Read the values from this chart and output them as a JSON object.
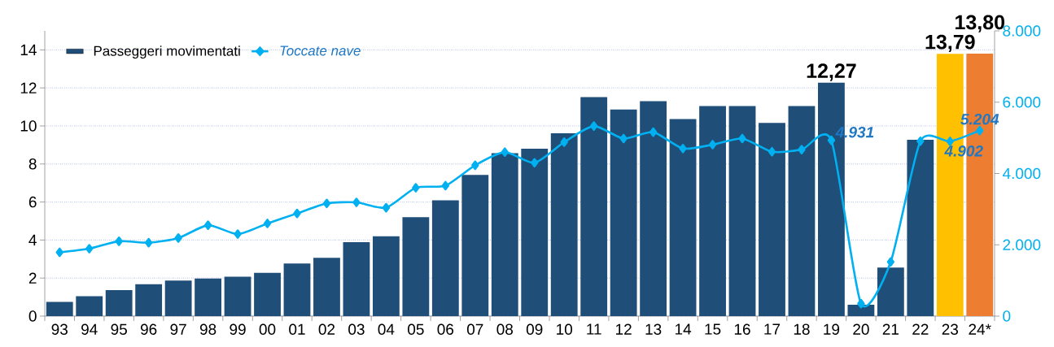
{
  "chart_data": {
    "type": "bar",
    "categories": [
      "93",
      "94",
      "95",
      "96",
      "97",
      "98",
      "99",
      "00",
      "01",
      "02",
      "03",
      "04",
      "05",
      "06",
      "07",
      "08",
      "09",
      "10",
      "11",
      "12",
      "13",
      "14",
      "15",
      "16",
      "17",
      "18",
      "19",
      "20",
      "21",
      "22",
      "23",
      "24*"
    ],
    "series": [
      {
        "name": "Passeggeri movimentati",
        "colors": [
          "#1f4e79",
          "#1f4e79",
          "#1f4e79",
          "#1f4e79",
          "#1f4e79",
          "#1f4e79",
          "#1f4e79",
          "#1f4e79",
          "#1f4e79",
          "#1f4e79",
          "#1f4e79",
          "#1f4e79",
          "#1f4e79",
          "#1f4e79",
          "#1f4e79",
          "#1f4e79",
          "#1f4e79",
          "#1f4e79",
          "#1f4e79",
          "#1f4e79",
          "#1f4e79",
          "#1f4e79",
          "#1f4e79",
          "#1f4e79",
          "#1f4e79",
          "#1f4e79",
          "#1f4e79",
          "#1f4e79",
          "#1f4e79",
          "#1f4e79",
          "#ffc000",
          "#ed7d31"
        ],
        "values": [
          0.75,
          1.05,
          1.37,
          1.68,
          1.87,
          1.98,
          2.07,
          2.27,
          2.77,
          3.07,
          3.89,
          4.2,
          5.2,
          6.09,
          7.43,
          8.57,
          8.8,
          9.61,
          11.52,
          10.86,
          11.3,
          10.36,
          11.05,
          11.05,
          10.16,
          11.05,
          12.27,
          0.6,
          2.55,
          9.27,
          13.79,
          13.8
        ],
        "value_labels": [
          null,
          null,
          null,
          null,
          null,
          null,
          null,
          null,
          null,
          null,
          null,
          null,
          null,
          null,
          null,
          null,
          null,
          null,
          null,
          null,
          null,
          null,
          null,
          null,
          null,
          null,
          "12,27",
          null,
          null,
          null,
          "13,79",
          "13,80"
        ]
      },
      {
        "name": "Toccate nave",
        "type": "line",
        "axis": "y2",
        "color": "#00b0f0",
        "values": [
          1790,
          1890,
          2100,
          2060,
          2190,
          2550,
          2300,
          2600,
          2880,
          3160,
          3190,
          3040,
          3600,
          3660,
          4230,
          4600,
          4300,
          4880,
          5330,
          4980,
          5160,
          4700,
          4810,
          4980,
          4610,
          4670,
          4931,
          350,
          1520,
          4905,
          4902,
          5204
        ],
        "value_labels": [
          null,
          null,
          null,
          null,
          null,
          null,
          null,
          null,
          null,
          null,
          null,
          null,
          null,
          null,
          null,
          null,
          null,
          null,
          null,
          null,
          null,
          null,
          null,
          null,
          null,
          null,
          "4.931",
          null,
          null,
          null,
          "4.902",
          "5.204"
        ]
      }
    ],
    "ylim": [
      0,
      15
    ],
    "yticks": [
      0,
      2,
      4,
      6,
      8,
      10,
      12,
      14
    ],
    "y2lim": [
      0,
      8000
    ],
    "y2ticks": [
      0,
      {
        "value": 2000,
        "label": "2.000"
      },
      {
        "value": 4000,
        "label": "4.000"
      },
      {
        "value": 6000,
        "label": "6.000"
      },
      {
        "value": 8000,
        "label": "8.000"
      }
    ],
    "grid": "y",
    "legend": "top left",
    "marker": "diamond",
    "line_style": "solid"
  }
}
